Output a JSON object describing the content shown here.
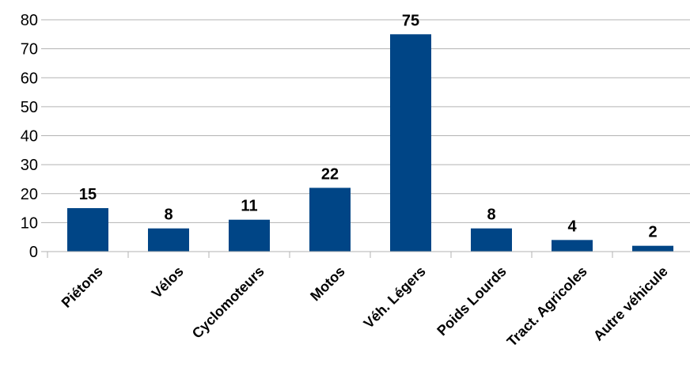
{
  "chart_data": {
    "type": "bar",
    "categories": [
      "Piétons",
      "Vélos",
      "Cyclomoteurs",
      "Motos",
      "Véh. Légers",
      "Poids Lourds",
      "Tract. Agricoles",
      "Autre véhicule"
    ],
    "values": [
      15,
      8,
      11,
      22,
      75,
      8,
      4,
      2
    ],
    "title": "",
    "xlabel": "",
    "ylabel": "",
    "ylim": [
      0,
      80
    ],
    "yticks": [
      0,
      10,
      20,
      30,
      40,
      50,
      60,
      70,
      80
    ],
    "grid": true,
    "bar_color": "#004586",
    "data_labels": true
  }
}
